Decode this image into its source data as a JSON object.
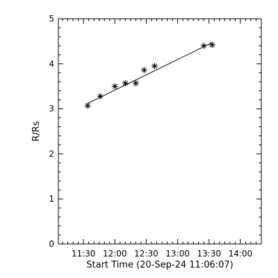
{
  "chart_data": {
    "type": "scatter",
    "xlabel": "Start Time (20-Sep-24 11:06:07)",
    "ylabel": "R/Rs",
    "x_tick_labels": [
      "11:30",
      "12:00",
      "12:30",
      "13:00",
      "13:30",
      "14:00"
    ],
    "y_tick_labels": [
      "0",
      "1",
      "2",
      "3",
      "4",
      "5"
    ],
    "xlim": [
      "11:06",
      "14:20"
    ],
    "ylim": [
      0,
      5
    ],
    "grid": false,
    "series": [
      {
        "marker": "asterisk",
        "x": [
          "11:34",
          "11:46",
          "12:00",
          "12:10",
          "12:20",
          "12:28",
          "12:38",
          "13:25",
          "13:33"
        ],
        "y": [
          3.07,
          3.28,
          3.5,
          3.57,
          3.57,
          3.86,
          3.95,
          4.4,
          4.42
        ]
      }
    ],
    "fit_line": {
      "x": [
        "11:34",
        "13:33"
      ],
      "y": [
        3.12,
        4.47
      ]
    }
  }
}
